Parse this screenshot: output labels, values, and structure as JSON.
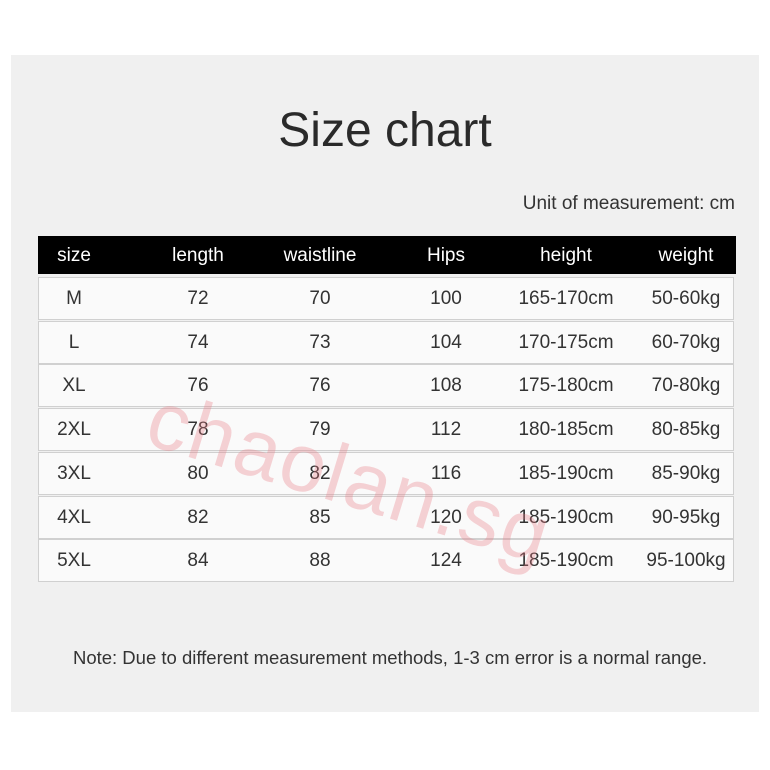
{
  "title": "Size chart",
  "unit": "Unit of measurement: cm",
  "table": {
    "header": [
      "size",
      "length",
      "waistline",
      "Hips",
      "height",
      "weight"
    ],
    "rows": [
      [
        "M",
        "72",
        "70",
        "100",
        "165-170cm",
        "50-60kg"
      ],
      [
        "L",
        "74",
        "73",
        "104",
        "170-175cm",
        "60-70kg"
      ],
      [
        "XL",
        "76",
        "76",
        "108",
        "175-180cm",
        "70-80kg"
      ],
      [
        "2XL",
        "78",
        "79",
        "112",
        "180-185cm",
        "80-85kg"
      ],
      [
        "3XL",
        "80",
        "82",
        "116",
        "185-190cm",
        "85-90kg"
      ],
      [
        "4XL",
        "82",
        "85",
        "120",
        "185-190cm",
        "90-95kg"
      ],
      [
        "5XL",
        "84",
        "88",
        "124",
        "185-190cm",
        "95-100kg"
      ]
    ]
  },
  "watermark": "chaolan.sg",
  "note": "Note: Due to different measurement methods, 1-3 cm error is a normal range."
}
